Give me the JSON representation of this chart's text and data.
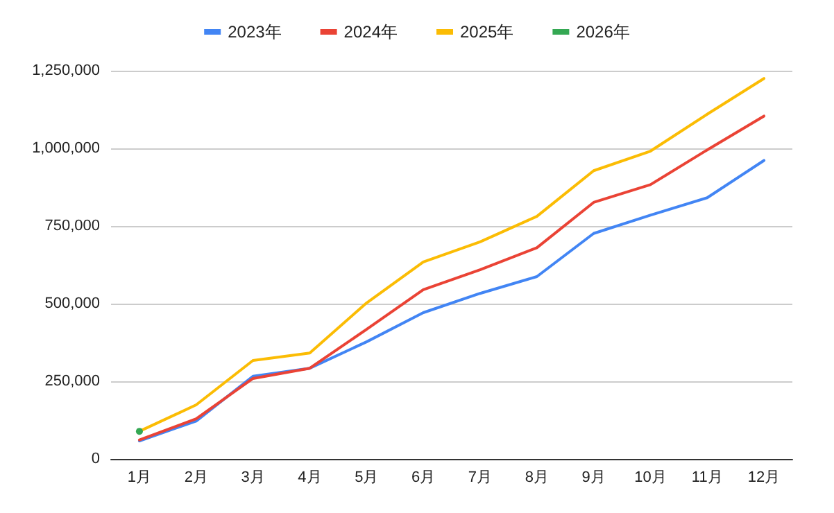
{
  "chart_data": {
    "type": "line",
    "categories": [
      "1月",
      "2月",
      "3月",
      "4月",
      "5月",
      "6月",
      "7月",
      "8月",
      "9月",
      "10月",
      "11月",
      "12月"
    ],
    "series": [
      {
        "name": "2023年",
        "color": "#4285f4",
        "values": [
          58000,
          122000,
          266000,
          292000,
          377000,
          471000,
          533000,
          587000,
          726000,
          785000,
          841000,
          961000
        ]
      },
      {
        "name": "2024年",
        "color": "#ea4335",
        "values": [
          61000,
          129000,
          259000,
          292000,
          417000,
          545000,
          609000,
          680000,
          826000,
          883000,
          995000,
          1104000
        ]
      },
      {
        "name": "2025年",
        "color": "#fbbc04",
        "values": [
          89000,
          174000,
          317000,
          341000,
          502000,
          634000,
          699000,
          781000,
          928000,
          991000,
          1110000,
          1225000
        ]
      },
      {
        "name": "2026年",
        "color": "#34a853",
        "marker": "circle",
        "values": [
          89000,
          null,
          null,
          null,
          null,
          null,
          null,
          null,
          null,
          null,
          null,
          null
        ]
      }
    ],
    "ylim": [
      0,
      1250000
    ],
    "yticks": [
      {
        "value": 0,
        "label": "0"
      },
      {
        "value": 250000,
        "label": "250,000"
      },
      {
        "value": 500000,
        "label": "500,000"
      },
      {
        "value": 750000,
        "label": "750,000"
      },
      {
        "value": 1000000,
        "label": "1,000,000"
      },
      {
        "value": 1250000,
        "label": "1,250,000"
      }
    ],
    "grid": "y",
    "legend": "top",
    "marker": "none",
    "line_style": "solid"
  }
}
